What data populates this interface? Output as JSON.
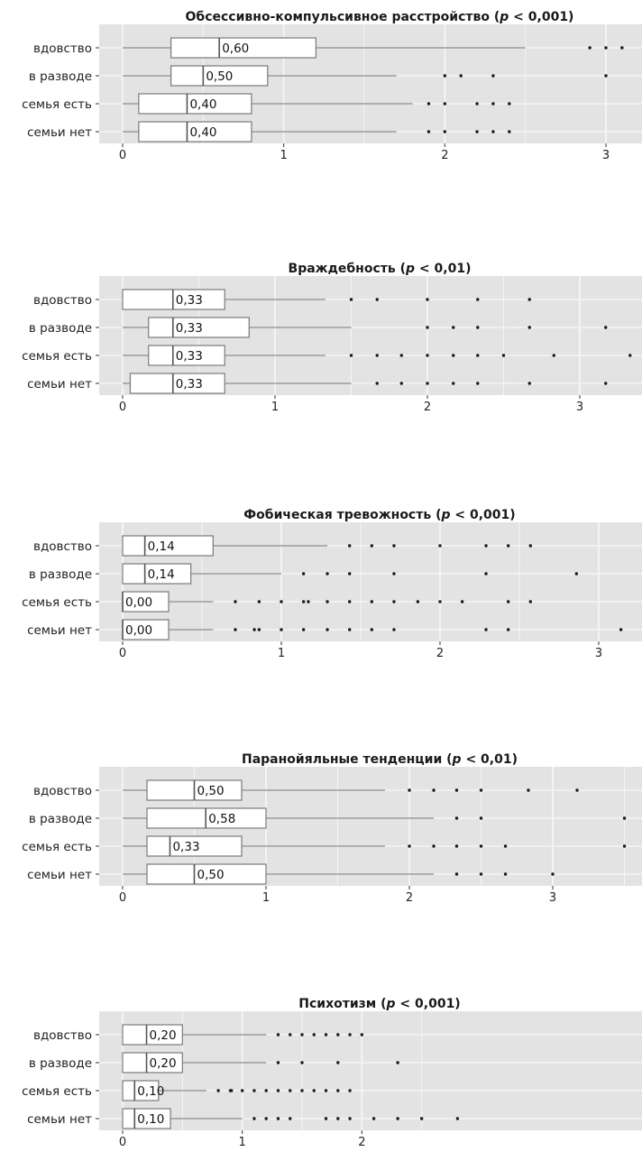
{
  "chart_data": [
    {
      "type": "boxplot",
      "title_main": "Обсессивно-компульсивное расстройство (",
      "title_p": "p",
      "title_tail": " < 0,001)",
      "categories": [
        "вдовство",
        "в разводе",
        "семья есть",
        "семьи нет"
      ],
      "x_ticks": [
        "0",
        "1",
        "2",
        "3"
      ],
      "xlim": [
        -0.1,
        3.2
      ],
      "boxes": [
        {
          "whisker_low": 0.0,
          "q1": 0.3,
          "median": 0.6,
          "median_label": "0,60",
          "q3": 1.2,
          "whisker_high": 2.5,
          "outliers": [
            2.9,
            3.0,
            3.1
          ]
        },
        {
          "whisker_low": 0.0,
          "q1": 0.3,
          "median": 0.5,
          "median_label": "0,50",
          "q3": 0.9,
          "whisker_high": 1.7,
          "outliers": [
            2.0,
            2.1,
            2.3,
            3.0
          ]
        },
        {
          "whisker_low": 0.0,
          "q1": 0.1,
          "median": 0.4,
          "median_label": "0,40",
          "q3": 0.8,
          "whisker_high": 1.8,
          "outliers": [
            1.9,
            2.0,
            2.2,
            2.3,
            2.4
          ]
        },
        {
          "whisker_low": 0.0,
          "q1": 0.1,
          "median": 0.4,
          "median_label": "0,40",
          "q3": 0.8,
          "whisker_high": 1.7,
          "outliers": [
            1.9,
            2.0,
            2.2,
            2.3,
            2.4
          ]
        }
      ]
    },
    {
      "type": "boxplot",
      "title_main": "Враждебность (",
      "title_p": "p",
      "title_tail": " < 0,01)",
      "categories": [
        "вдовство",
        "в разводе",
        "семья есть",
        "семьи нет"
      ],
      "x_ticks": [
        "0",
        "1",
        "2",
        "3"
      ],
      "xlim": [
        -0.1,
        3.4
      ],
      "boxes": [
        {
          "whisker_low": 0.0,
          "q1": 0.0,
          "median": 0.33,
          "median_label": "0,33",
          "q3": 0.67,
          "whisker_high": 1.33,
          "outliers": [
            1.5,
            1.67,
            2.0,
            2.33,
            2.67
          ]
        },
        {
          "whisker_low": 0.0,
          "q1": 0.17,
          "median": 0.33,
          "median_label": "0,33",
          "q3": 0.83,
          "whisker_high": 1.5,
          "outliers": [
            2.0,
            2.17,
            2.33,
            2.67,
            3.17
          ]
        },
        {
          "whisker_low": 0.0,
          "q1": 0.17,
          "median": 0.33,
          "median_label": "0,33",
          "q3": 0.67,
          "whisker_high": 1.33,
          "outliers": [
            1.5,
            1.67,
            1.83,
            2.0,
            2.17,
            2.33,
            2.5,
            2.83,
            3.33
          ]
        },
        {
          "whisker_low": 0.0,
          "q1": 0.05,
          "median": 0.33,
          "median_label": "0,33",
          "q3": 0.67,
          "whisker_high": 1.5,
          "outliers": [
            1.67,
            1.83,
            2.0,
            2.17,
            2.33,
            2.67,
            3.17
          ]
        }
      ]
    },
    {
      "type": "boxplot",
      "title_main": "Фобическая тревожность (",
      "title_p": "p",
      "title_tail": " < 0,001)",
      "categories": [
        "вдовство",
        "в разводе",
        "семья есть",
        "семьи нет"
      ],
      "x_ticks": [
        "0",
        "1",
        "2",
        "3"
      ],
      "xlim": [
        -0.1,
        3.2
      ],
      "boxes": [
        {
          "whisker_low": 0.0,
          "q1": 0.0,
          "median": 0.14,
          "median_label": "0,14",
          "q3": 0.57,
          "whisker_high": 1.29,
          "outliers": [
            1.43,
            1.57,
            1.71,
            2.0,
            2.29,
            2.43,
            2.57
          ]
        },
        {
          "whisker_low": 0.0,
          "q1": 0.0,
          "median": 0.14,
          "median_label": "0,14",
          "q3": 0.43,
          "whisker_high": 1.0,
          "outliers": [
            1.14,
            1.29,
            1.43,
            1.71,
            2.29,
            2.86
          ]
        },
        {
          "whisker_low": 0.0,
          "q1": 0.0,
          "median": 0.0,
          "median_label": "0,00",
          "q3": 0.29,
          "whisker_high": 0.57,
          "outliers": [
            0.71,
            0.86,
            1.0,
            1.14,
            1.17,
            1.29,
            1.43,
            1.57,
            1.71,
            1.86,
            2.0,
            2.14,
            2.43,
            2.57
          ]
        },
        {
          "whisker_low": 0.0,
          "q1": 0.0,
          "median": 0.0,
          "median_label": "0,00",
          "q3": 0.29,
          "whisker_high": 0.57,
          "outliers": [
            0.71,
            0.83,
            0.86,
            1.0,
            1.14,
            1.29,
            1.43,
            1.57,
            1.71,
            2.29,
            2.43,
            3.14
          ]
        }
      ]
    },
    {
      "type": "boxplot",
      "title_main": "Паранойяльные тенденции (",
      "title_p": "p",
      "title_tail": " < 0,01)",
      "categories": [
        "вдовство",
        "в разводе",
        "семья есть",
        "семьи нет"
      ],
      "x_ticks": [
        "0",
        "1",
        "2",
        "3"
      ],
      "xlim": [
        -0.1,
        3.5
      ],
      "boxes": [
        {
          "whisker_low": 0.0,
          "q1": 0.17,
          "median": 0.5,
          "median_label": "0,50",
          "q3": 0.83,
          "whisker_high": 1.83,
          "outliers": [
            2.0,
            2.17,
            2.33,
            2.5,
            2.83,
            3.17
          ]
        },
        {
          "whisker_low": 0.0,
          "q1": 0.17,
          "median": 0.58,
          "median_label": "0,58",
          "q3": 1.0,
          "whisker_high": 2.17,
          "outliers": [
            2.33,
            2.5,
            3.5
          ]
        },
        {
          "whisker_low": 0.0,
          "q1": 0.17,
          "median": 0.33,
          "median_label": "0,33",
          "q3": 0.83,
          "whisker_high": 1.83,
          "outliers": [
            2.0,
            2.17,
            2.33,
            2.5,
            2.67,
            3.5
          ]
        },
        {
          "whisker_low": 0.0,
          "q1": 0.17,
          "median": 0.5,
          "median_label": "0,50",
          "q3": 1.0,
          "whisker_high": 2.17,
          "outliers": [
            2.33,
            2.5,
            2.67,
            3.0
          ]
        }
      ]
    },
    {
      "type": "boxplot",
      "title_main": "Психотизм (",
      "title_p": "p",
      "title_tail": " < 0,001)",
      "categories": [
        "вдовство",
        "в разводе",
        "семья есть",
        "семьи нет"
      ],
      "x_ticks": [
        "0",
        "1",
        "2"
      ],
      "xlim": [
        -0.1,
        2.9
      ],
      "boxes": [
        {
          "whisker_low": 0.0,
          "q1": 0.0,
          "median": 0.2,
          "median_label": "0,20",
          "q3": 0.5,
          "whisker_high": 1.2,
          "outliers": [
            1.3,
            1.4,
            1.5,
            1.6,
            1.7,
            1.8,
            1.9,
            2.0
          ]
        },
        {
          "whisker_low": 0.0,
          "q1": 0.0,
          "median": 0.2,
          "median_label": "0,20",
          "q3": 0.5,
          "whisker_high": 1.2,
          "outliers": [
            1.3,
            1.5,
            1.8,
            2.3
          ]
        },
        {
          "whisker_low": 0.0,
          "q1": 0.0,
          "median": 0.1,
          "median_label": "0,10",
          "q3": 0.3,
          "whisker_high": 0.7,
          "outliers": [
            0.8,
            0.9,
            0.91,
            1.0,
            1.1,
            1.2,
            1.3,
            1.4,
            1.5,
            1.6,
            1.7,
            1.8,
            1.9
          ]
        },
        {
          "whisker_low": 0.0,
          "q1": 0.0,
          "median": 0.1,
          "median_label": "0,10",
          "q3": 0.4,
          "whisker_high": 1.0,
          "outliers": [
            1.1,
            1.2,
            1.3,
            1.4,
            1.7,
            1.8,
            1.9,
            2.1,
            2.3,
            2.5,
            2.8
          ]
        }
      ]
    }
  ],
  "colors": {
    "panel": "#e3e3e3",
    "grid": "#f4f4f4",
    "box_fill": "#ffffff",
    "box_stroke": "#7a7a7a",
    "whisker": "#8a8a8a",
    "outlier": "#1a1a1a"
  }
}
